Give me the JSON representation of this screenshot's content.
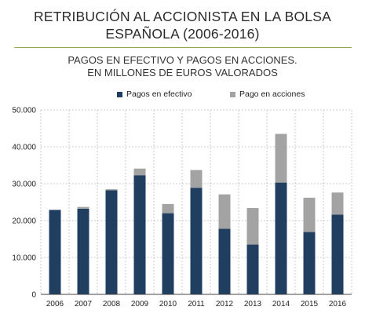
{
  "header": {
    "title_line1": "RETRIBUCIÓN AL ACCIONISTA EN LA BOLSA",
    "title_line2": "ESPAÑOLA (2006-2016)"
  },
  "chart_data": {
    "type": "bar",
    "stacked": true,
    "title": "PAGOS EN EFECTIVO Y PAGOS EN ACCIONES.",
    "subtitle": "EN MILLONES DE EUROS VALORADOS",
    "xlabel": "",
    "ylabel": "",
    "categories": [
      "2006",
      "2007",
      "2008",
      "2009",
      "2010",
      "2011",
      "2012",
      "2013",
      "2014",
      "2015",
      "2016"
    ],
    "series": [
      {
        "name": "Pagos en efectivo",
        "color": "#1f3e60",
        "values": [
          22900,
          23200,
          28200,
          32300,
          22000,
          28900,
          17800,
          13500,
          30300,
          16900,
          21600
        ]
      },
      {
        "name": "Pago en acciones",
        "color": "#a3a3a3",
        "values": [
          0,
          500,
          300,
          1800,
          2500,
          4800,
          9300,
          9900,
          13200,
          9300,
          6000
        ]
      }
    ],
    "yticks": [
      "0",
      "10.000",
      "20.000",
      "30.000",
      "40.000",
      "50.000"
    ],
    "ylim": [
      0,
      50000
    ],
    "grid": true,
    "legend": "top"
  }
}
